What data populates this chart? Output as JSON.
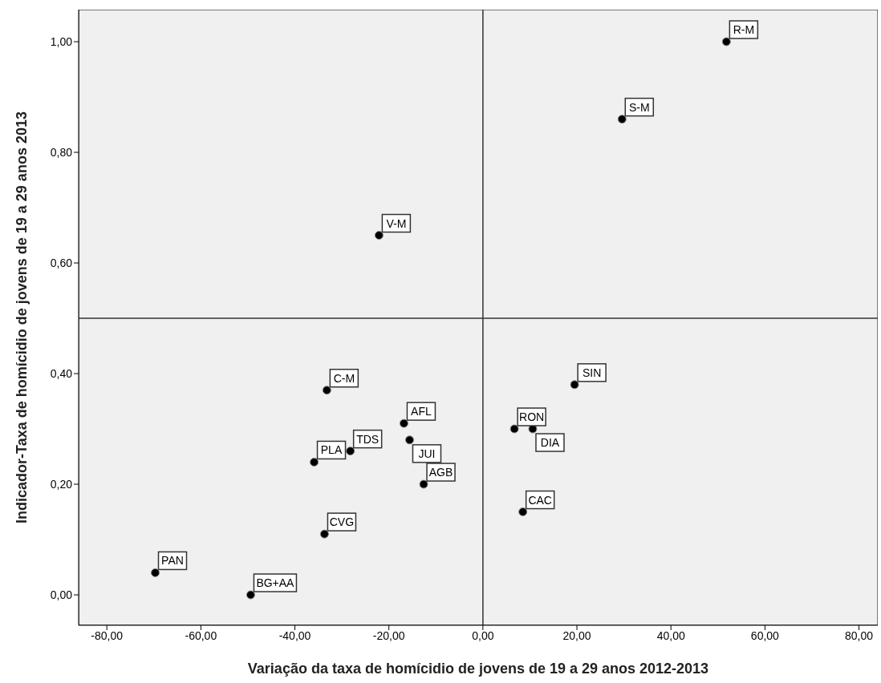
{
  "chart_data": {
    "type": "scatter",
    "xlabel": "Variação da taxa de homícidio de jovens de 19 a 29 anos 2012-2013",
    "ylabel": "Indicador-Taxa de homícidio de jovens de 19 a 29 anos 2013",
    "x": [
      51.8,
      29.6,
      -22.1,
      19.5,
      6.7,
      10.6,
      8.5,
      -33.2,
      -16.8,
      -15.6,
      -28.2,
      -35.9,
      -12.6,
      -33.7,
      -69.7,
      -49.4
    ],
    "series": [
      {
        "color": "#000000",
        "values": [
          1.0,
          0.86,
          0.65,
          0.38,
          0.3,
          0.3,
          0.15,
          0.37,
          0.31,
          0.28,
          0.26,
          0.24,
          0.2,
          0.11,
          0.04,
          0.0
        ]
      }
    ],
    "annotations": [
      {
        "text": "R-M",
        "x": 51.8,
        "y": 1.0
      },
      {
        "text": "S-M",
        "x": 29.6,
        "y": 0.86
      },
      {
        "text": "V-M",
        "x": -22.1,
        "y": 0.65
      },
      {
        "text": "SIN",
        "x": 19.5,
        "y": 0.38
      },
      {
        "text": "RON",
        "x": 6.7,
        "y": 0.3
      },
      {
        "text": "DIA",
        "x": 10.6,
        "y": 0.3
      },
      {
        "text": "CAC",
        "x": 8.5,
        "y": 0.15
      },
      {
        "text": "C-M",
        "x": -33.2,
        "y": 0.37
      },
      {
        "text": "AFL",
        "x": -16.8,
        "y": 0.31
      },
      {
        "text": "JUI",
        "x": -15.6,
        "y": 0.28
      },
      {
        "text": "TDS",
        "x": -28.2,
        "y": 0.26
      },
      {
        "text": "PLA",
        "x": -35.9,
        "y": 0.24
      },
      {
        "text": "AGB",
        "x": -12.6,
        "y": 0.2
      },
      {
        "text": "CVG",
        "x": -33.7,
        "y": 0.11
      },
      {
        "text": "PAN",
        "x": -69.7,
        "y": 0.04
      },
      {
        "text": "BG+AA",
        "x": -49.4,
        "y": 0.0
      }
    ],
    "xlim": [
      -86,
      84
    ],
    "ylim": [
      -0.055,
      1.058
    ],
    "xticks": [
      {
        "value": -80,
        "label": "-80,00"
      },
      {
        "value": -60,
        "label": "-60,00"
      },
      {
        "value": -40,
        "label": "-40,00"
      },
      {
        "value": -20,
        "label": "-20,00"
      },
      {
        "value": 0,
        "label": "0,00"
      },
      {
        "value": 20,
        "label": "20,00"
      },
      {
        "value": 40,
        "label": "40,00"
      },
      {
        "value": 60,
        "label": "60,00"
      },
      {
        "value": 80,
        "label": "80,00"
      }
    ],
    "yticks": [
      {
        "value": 0,
        "label": "0,00"
      },
      {
        "value": 0.2,
        "label": "0,20"
      },
      {
        "value": 0.4,
        "label": "0,40"
      },
      {
        "value": 0.6,
        "label": "0,60"
      },
      {
        "value": 0.8,
        "label": "0,80"
      },
      {
        "value": 1.0,
        "label": "1,00"
      }
    ],
    "ref_lines": [
      {
        "axis": "x",
        "value": 0,
        "color": "#333333"
      },
      {
        "axis": "y",
        "value": 0.5,
        "color": "#333333"
      }
    ],
    "grid": false,
    "legend": false,
    "marker": "circle"
  }
}
